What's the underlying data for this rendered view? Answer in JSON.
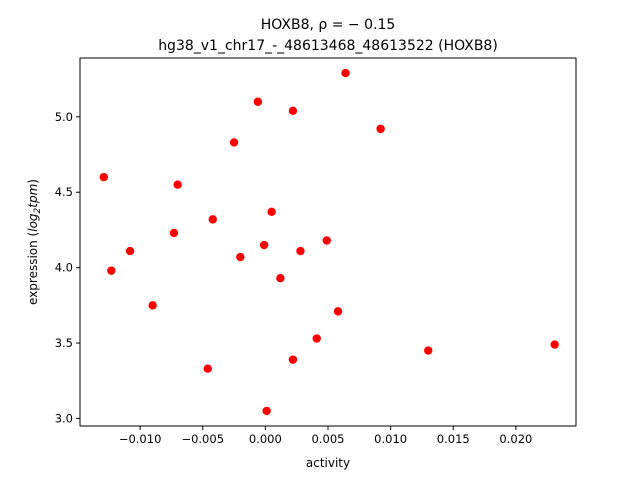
{
  "chart_data": {
    "type": "scatter",
    "title_line1": "HOXB8, ρ = − 0.15",
    "title_line2": "hg38_v1_chr17_-_48613468_48613522 (HOXB8)",
    "xlabel": "activity",
    "ylabel": "expression (log2tpm)",
    "ylabel_parts": {
      "prefix": "expression (",
      "log": "log",
      "sub": "2",
      "tpm": "tpm",
      "suffix": ")"
    },
    "xlim": [
      -0.0148,
      0.0248
    ],
    "ylim": [
      2.95,
      5.39
    ],
    "x_ticks": [
      -0.01,
      -0.005,
      0.0,
      0.005,
      0.01,
      0.015,
      0.02
    ],
    "x_tick_labels": [
      "−0.010",
      "−0.005",
      "0.000",
      "0.005",
      "0.010",
      "0.015",
      "0.020"
    ],
    "y_ticks": [
      3.0,
      3.5,
      4.0,
      4.5,
      5.0
    ],
    "y_tick_labels": [
      "3.0",
      "3.5",
      "4.0",
      "4.5",
      "5.0"
    ],
    "marker_color": "#ff0000",
    "points": [
      {
        "x": -0.0129,
        "y": 4.6
      },
      {
        "x": -0.0123,
        "y": 3.98
      },
      {
        "x": -0.0108,
        "y": 4.11
      },
      {
        "x": -0.009,
        "y": 3.75
      },
      {
        "x": -0.0073,
        "y": 4.23
      },
      {
        "x": -0.007,
        "y": 4.55
      },
      {
        "x": -0.0046,
        "y": 3.33
      },
      {
        "x": -0.0042,
        "y": 4.32
      },
      {
        "x": -0.0025,
        "y": 4.83
      },
      {
        "x": -0.002,
        "y": 4.07
      },
      {
        "x": -0.0006,
        "y": 5.1
      },
      {
        "x": -0.0001,
        "y": 4.15
      },
      {
        "x": 0.0001,
        "y": 3.05
      },
      {
        "x": 0.0005,
        "y": 4.37
      },
      {
        "x": 0.0012,
        "y": 3.93
      },
      {
        "x": 0.0022,
        "y": 3.39
      },
      {
        "x": 0.0022,
        "y": 5.04
      },
      {
        "x": 0.0028,
        "y": 4.11
      },
      {
        "x": 0.0041,
        "y": 3.53
      },
      {
        "x": 0.0049,
        "y": 4.18
      },
      {
        "x": 0.0058,
        "y": 3.71
      },
      {
        "x": 0.0064,
        "y": 5.29
      },
      {
        "x": 0.0092,
        "y": 4.92
      },
      {
        "x": 0.013,
        "y": 3.45
      },
      {
        "x": 0.0231,
        "y": 3.49
      }
    ]
  }
}
